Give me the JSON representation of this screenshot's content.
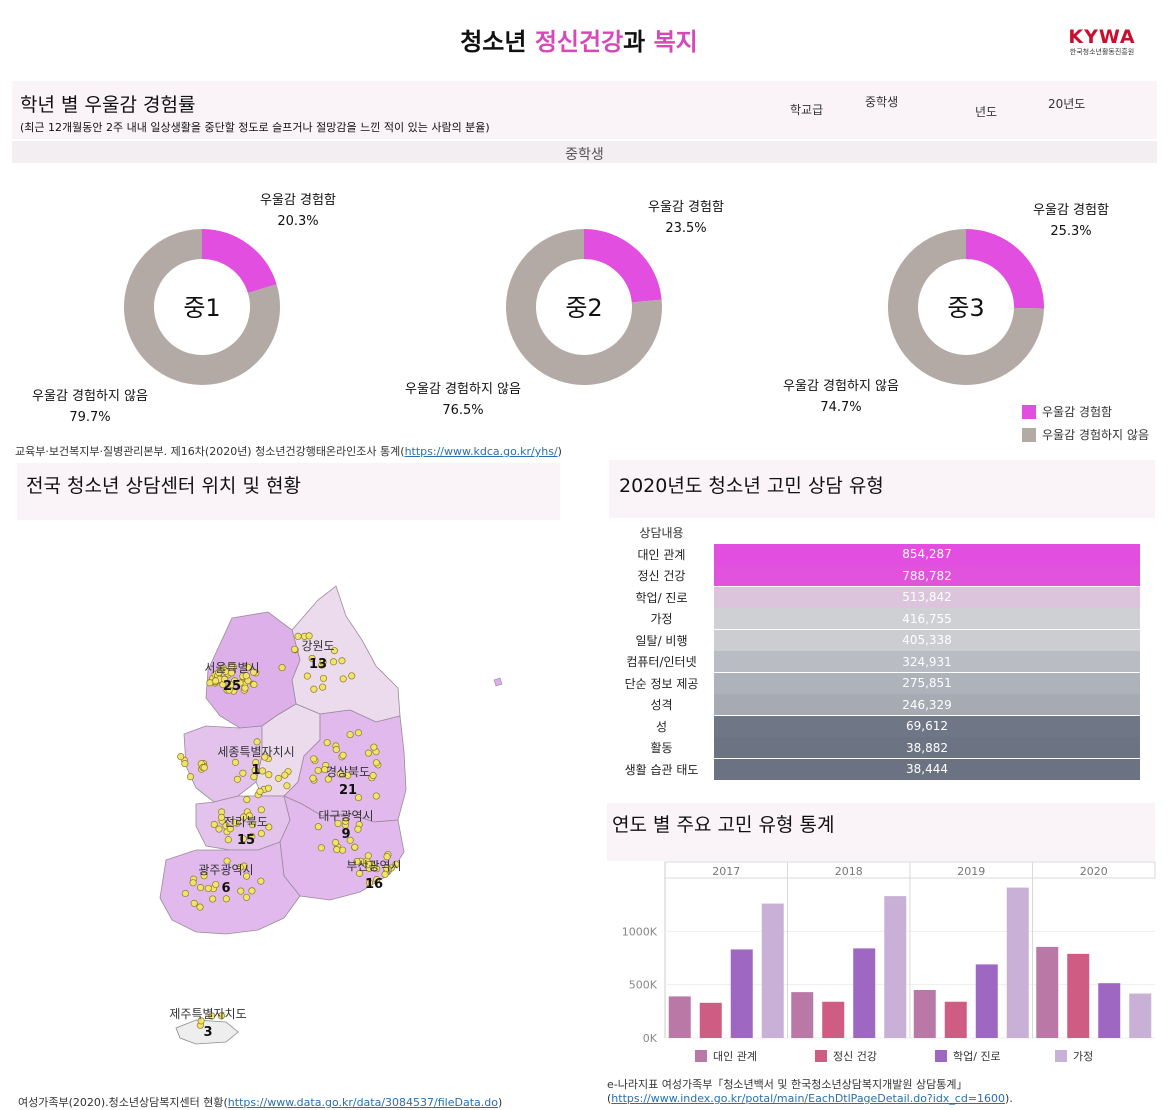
{
  "header": {
    "title_part1": "청소년 ",
    "title_part2": "정신건강",
    "title_part3": "과 ",
    "title_part4": "복지",
    "logo_text": "KYWA",
    "logo_sub": "한국청소년활동진흥원"
  },
  "depression": {
    "title": "학년 별 우울감 경험률",
    "note": "(최근 12개월동안 2주 내내 일상생활을 중단할 정도로 슬프거나 절망감을 느낀 적이 있는 사람의 분율)",
    "filter_school_label": "학교급",
    "filter_school_value": "중학생",
    "filter_year_label": "년도",
    "filter_year_value": "20년도",
    "subheader": "중학생",
    "yes_label": "우울감 경험함",
    "no_label": "우울감 경험하지 않음",
    "legend_yes": "우울감 경험함",
    "legend_no": "우울감 경험하지 않음",
    "source": "교육부·보건복지부·질병관리본부. 제16차(2020년) 청소년건강행태온라인조사 통계(",
    "source_link": "https://www.kdca.go.kr/yhs/",
    "source_end": ")"
  },
  "map": {
    "title": "전국 청소년 상담센터 위치 및 현황",
    "regions": [
      {
        "name": "서울특별시",
        "count": "25"
      },
      {
        "name": "강원도",
        "count": "13"
      },
      {
        "name": "세종특별자치시",
        "count": "1"
      },
      {
        "name": "경상북도",
        "count": "21"
      },
      {
        "name": "전라북도",
        "count": "15"
      },
      {
        "name": "대구광역시",
        "count": "9"
      },
      {
        "name": "광주광역시",
        "count": "6"
      },
      {
        "name": "부산광역시",
        "count": "16"
      },
      {
        "name": "제주특별자치도",
        "count": "3"
      }
    ],
    "source": "여성가족부(2020).청소년상담복지센터 현황(",
    "source_link": "https://www.data.go.kr/data/3084537/fileData.do",
    "source_end": ")"
  },
  "consult": {
    "title": "2020년도 청소년 고민 상담 유형",
    "col_header": "상담내용",
    "rows": [
      {
        "label": "대인 관계",
        "value": "854,287",
        "color": "#e14ee0"
      },
      {
        "label": "정신 건강",
        "value": "788,782",
        "color": "#e152dd"
      },
      {
        "label": "학업/ 진로",
        "value": "513,842",
        "color": "#dcc4dc"
      },
      {
        "label": "가정",
        "value": "416,755",
        "color": "#cfd0d3"
      },
      {
        "label": "일탈/ 비행",
        "value": "405,338",
        "color": "#cbcdd1"
      },
      {
        "label": "컴퓨터/인터넷",
        "value": "324,931",
        "color": "#b9bcc3"
      },
      {
        "label": "단순 정보 제공",
        "value": "275,851",
        "color": "#aeb2ba"
      },
      {
        "label": "성격",
        "value": "246,329",
        "color": "#a5aab3"
      },
      {
        "label": "성",
        "value": "69,612",
        "color": "#6f7787"
      },
      {
        "label": "활동",
        "value": "38,882",
        "color": "#6c7484"
      },
      {
        "label": "생활 습관 태도",
        "value": "38,444",
        "color": "#6b7383"
      }
    ]
  },
  "yearly": {
    "title": "연도 별 주요 고민 유형 통계",
    "source_line1": "e-나라지표 여성가족부「청소년백서 및 한국청소년상담복지개발원 상담통계」",
    "source_open": "(",
    "source_link": "https://www.index.go.kr/potal/main/EachDtlPageDetail.do?idx_cd=1600",
    "source_end": ")."
  },
  "chart_data": [
    {
      "type": "pie",
      "title": "중1",
      "labels": [
        "우울감 경험함",
        "우울감 경험하지 않음"
      ],
      "values": [
        20.3,
        79.7
      ],
      "value_text": [
        "20.3%",
        "79.7%"
      ],
      "colors": [
        "#e14ee0",
        "#b3aaa5"
      ]
    },
    {
      "type": "pie",
      "title": "중2",
      "labels": [
        "우울감 경험함",
        "우울감 경험하지 않음"
      ],
      "values": [
        23.5,
        76.5
      ],
      "value_text": [
        "23.5%",
        "76.5%"
      ],
      "colors": [
        "#e14ee0",
        "#b3aaa5"
      ]
    },
    {
      "type": "pie",
      "title": "중3",
      "labels": [
        "우울감 경험함",
        "우울감 경험하지 않음"
      ],
      "values": [
        25.3,
        74.7
      ],
      "value_text": [
        "25.3%",
        "74.7%"
      ],
      "colors": [
        "#e14ee0",
        "#b3aaa5"
      ]
    },
    {
      "type": "bar",
      "categories": [
        "2017",
        "2018",
        "2019",
        "2020"
      ],
      "series": [
        {
          "name": "대인 관계",
          "values": [
            390000,
            430000,
            450000,
            854287
          ],
          "color": "#b978a6"
        },
        {
          "name": "정신 건강",
          "values": [
            330000,
            340000,
            340000,
            788782
          ],
          "color": "#cf5c82"
        },
        {
          "name": "학업/ 진로",
          "values": [
            830000,
            840000,
            690000,
            513842
          ],
          "color": "#9d67c2"
        },
        {
          "name": "가정",
          "values": [
            1260000,
            1330000,
            1410000,
            416755
          ],
          "color": "#c8b0d6"
        }
      ],
      "yticks": [
        "0K",
        "500K",
        "1000K"
      ],
      "ylim": [
        0,
        1500000
      ],
      "legend": "bottom"
    }
  ]
}
